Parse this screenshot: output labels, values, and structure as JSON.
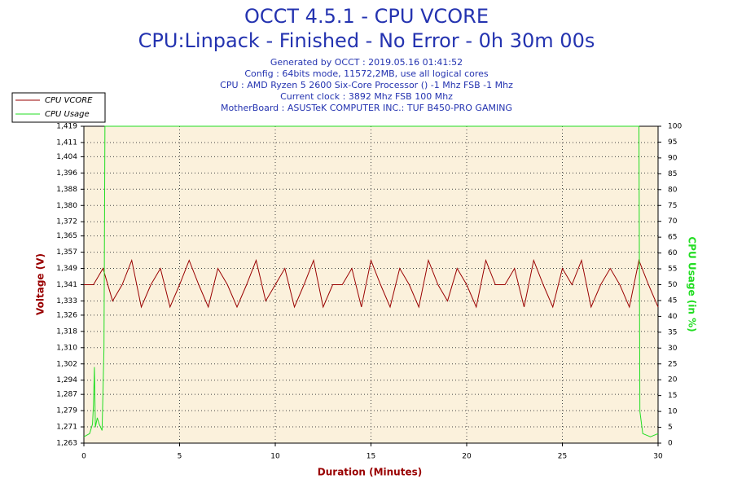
{
  "chart_data": {
    "type": "line",
    "title": "OCCT 4.5.1 - CPU VCORE",
    "subtitle": "CPU:Linpack - Finished - No Error - 0h 30m 00s",
    "info": [
      "Generated by OCCT : 2019.05.16 01:41:52",
      "Config : 64bits mode, 11572,2MB, use all logical cores",
      "CPU : AMD Ryzen 5 2600 Six-Core Processor () -1 Mhz FSB -1 Mhz",
      "Current clock : 3892 Mhz FSB 100 Mhz",
      "MotherBoard : ASUSTeK COMPUTER INC.: TUF B450-PRO GAMING"
    ],
    "x_label": "Duration (Minutes)",
    "y_label": "Voltage (V)",
    "y2_label": "CPU Usage (in %)",
    "xlim": [
      0,
      30
    ],
    "xticks": [
      0,
      5,
      10,
      15,
      20,
      25,
      30
    ],
    "ylim": [
      1.263,
      1.419
    ],
    "yticks": [
      {
        "value": 1.263,
        "label": "1,263"
      },
      {
        "value": 1.271,
        "label": "1,271"
      },
      {
        "value": 1.279,
        "label": "1,279"
      },
      {
        "value": 1.287,
        "label": "1,287"
      },
      {
        "value": 1.294,
        "label": "1,294"
      },
      {
        "value": 1.302,
        "label": "1,302"
      },
      {
        "value": 1.31,
        "label": "1,310"
      },
      {
        "value": 1.318,
        "label": "1,318"
      },
      {
        "value": 1.326,
        "label": "1,326"
      },
      {
        "value": 1.333,
        "label": "1,333"
      },
      {
        "value": 1.341,
        "label": "1,341"
      },
      {
        "value": 1.349,
        "label": "1,349"
      },
      {
        "value": 1.357,
        "label": "1,357"
      },
      {
        "value": 1.365,
        "label": "1,365"
      },
      {
        "value": 1.372,
        "label": "1,372"
      },
      {
        "value": 1.38,
        "label": "1,380"
      },
      {
        "value": 1.388,
        "label": "1,388"
      },
      {
        "value": 1.396,
        "label": "1,396"
      },
      {
        "value": 1.404,
        "label": "1,404"
      },
      {
        "value": 1.411,
        "label": "1,411"
      },
      {
        "value": 1.419,
        "label": "1,419"
      }
    ],
    "y2lim": [
      0,
      100
    ],
    "y2ticks": [
      0,
      5,
      10,
      15,
      20,
      25,
      30,
      35,
      40,
      45,
      50,
      55,
      60,
      65,
      70,
      75,
      80,
      85,
      90,
      95,
      100
    ],
    "grid": true,
    "legend": "top-left",
    "series": [
      {
        "name": "CPU VCORE",
        "color": "#990000",
        "x": [
          0,
          0.5,
          1,
          1.5,
          2,
          2.5,
          3,
          3.5,
          4,
          4.5,
          5,
          5.5,
          6,
          6.5,
          7,
          7.5,
          8,
          8.5,
          9,
          9.5,
          10,
          10.5,
          11,
          11.5,
          12,
          12.5,
          13,
          13.5,
          14,
          14.5,
          15,
          15.5,
          16,
          16.5,
          17,
          17.5,
          18,
          18.5,
          19,
          19.5,
          20,
          20.5,
          21,
          21.5,
          22,
          22.5,
          23,
          23.5,
          24,
          24.5,
          25,
          25.5,
          26,
          26.5,
          27,
          27.5,
          28,
          28.5,
          29,
          29.5,
          30
        ],
        "values": [
          1.341,
          1.341,
          1.349,
          1.333,
          1.341,
          1.353,
          1.33,
          1.341,
          1.349,
          1.33,
          1.341,
          1.353,
          1.341,
          1.33,
          1.349,
          1.341,
          1.33,
          1.341,
          1.353,
          1.333,
          1.341,
          1.349,
          1.33,
          1.341,
          1.353,
          1.33,
          1.341,
          1.341,
          1.349,
          1.33,
          1.353,
          1.341,
          1.33,
          1.349,
          1.341,
          1.33,
          1.353,
          1.341,
          1.333,
          1.349,
          1.341,
          1.33,
          1.353,
          1.341,
          1.341,
          1.349,
          1.33,
          1.353,
          1.341,
          1.33,
          1.349,
          1.341,
          1.353,
          1.33,
          1.341,
          1.349,
          1.341,
          1.33,
          1.353,
          1.341,
          1.33
        ]
      },
      {
        "name": "CPU Usage",
        "color": "#22dd22",
        "axis": "y2",
        "x": [
          0,
          0.3,
          0.45,
          0.5,
          0.55,
          0.6,
          0.7,
          0.8,
          0.95,
          1.05,
          1.1,
          29.0,
          29.05,
          29.2,
          29.6,
          30
        ],
        "values": [
          2,
          3,
          6,
          12,
          24,
          5,
          8,
          6,
          4,
          30,
          100,
          100,
          10,
          3,
          2,
          3
        ]
      }
    ]
  }
}
